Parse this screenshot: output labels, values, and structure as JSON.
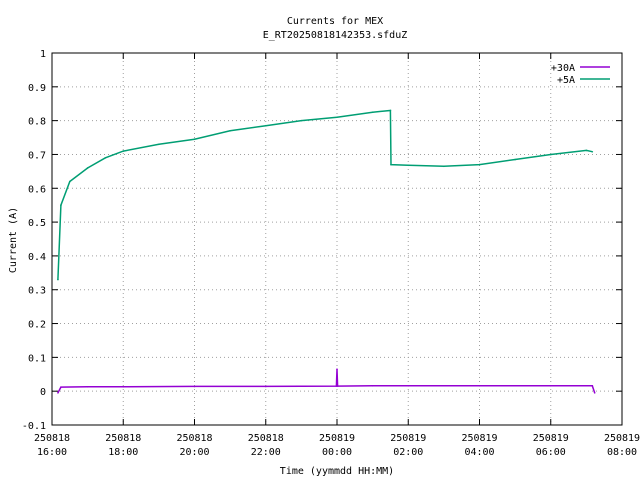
{
  "chart_data": {
    "type": "line",
    "title": "Currents for MEX",
    "subtitle": "E_RT20250818142353.sfduZ",
    "xlabel": "Time (yymmdd HH:MM)",
    "ylabel": "Current (A)",
    "xlim": [
      "250818 16:00",
      "250819 08:00"
    ],
    "ylim": [
      -0.1,
      1
    ],
    "grid": true,
    "legend_position": "top-right",
    "x_ticks": [
      {
        "date": "250818",
        "time": "16:00"
      },
      {
        "date": "250818",
        "time": "18:00"
      },
      {
        "date": "250818",
        "time": "20:00"
      },
      {
        "date": "250818",
        "time": "22:00"
      },
      {
        "date": "250819",
        "time": "00:00"
      },
      {
        "date": "250819",
        "time": "02:00"
      },
      {
        "date": "250819",
        "time": "04:00"
      },
      {
        "date": "250819",
        "time": "06:00"
      },
      {
        "date": "250819",
        "time": "08:00"
      }
    ],
    "y_ticks": [
      "-0.1",
      "0",
      "0.1",
      "0.2",
      "0.3",
      "0.4",
      "0.5",
      "0.6",
      "0.7",
      "0.8",
      "0.9",
      "1"
    ],
    "series": [
      {
        "name": "+30A",
        "color": "#9400d3",
        "points": [
          [
            "250818 16:10",
            -0.005
          ],
          [
            "250818 16:15",
            0.012
          ],
          [
            "250818 17:00",
            0.013
          ],
          [
            "250818 18:00",
            0.013
          ],
          [
            "250818 20:00",
            0.014
          ],
          [
            "250818 22:00",
            0.014
          ],
          [
            "250818 23:59",
            0.015
          ],
          [
            "250819 00:00",
            0.065
          ],
          [
            "250819 00:01",
            0.015
          ],
          [
            "250819 01:00",
            0.016
          ],
          [
            "250819 02:00",
            0.016
          ],
          [
            "250819 04:00",
            0.016
          ],
          [
            "250819 06:00",
            0.016
          ],
          [
            "250819 07:10",
            0.016
          ],
          [
            "250819 07:14",
            -0.005
          ]
        ]
      },
      {
        "name": "+5A",
        "color": "#009e73",
        "points": [
          [
            "250818 16:10",
            0.33
          ],
          [
            "250818 16:15",
            0.55
          ],
          [
            "250818 16:30",
            0.62
          ],
          [
            "250818 17:00",
            0.66
          ],
          [
            "250818 17:30",
            0.69
          ],
          [
            "250818 18:00",
            0.71
          ],
          [
            "250818 19:00",
            0.73
          ],
          [
            "250818 20:00",
            0.745
          ],
          [
            "250818 21:00",
            0.77
          ],
          [
            "250818 22:00",
            0.785
          ],
          [
            "250818 23:00",
            0.8
          ],
          [
            "250819 00:00",
            0.81
          ],
          [
            "250819 01:00",
            0.825
          ],
          [
            "250819 01:30",
            0.83
          ],
          [
            "250819 01:31",
            0.67
          ],
          [
            "250819 02:00",
            0.668
          ],
          [
            "250819 03:00",
            0.665
          ],
          [
            "250819 04:00",
            0.67
          ],
          [
            "250819 05:00",
            0.685
          ],
          [
            "250819 06:00",
            0.7
          ],
          [
            "250819 07:00",
            0.712
          ],
          [
            "250819 07:10",
            0.708
          ]
        ]
      }
    ]
  }
}
